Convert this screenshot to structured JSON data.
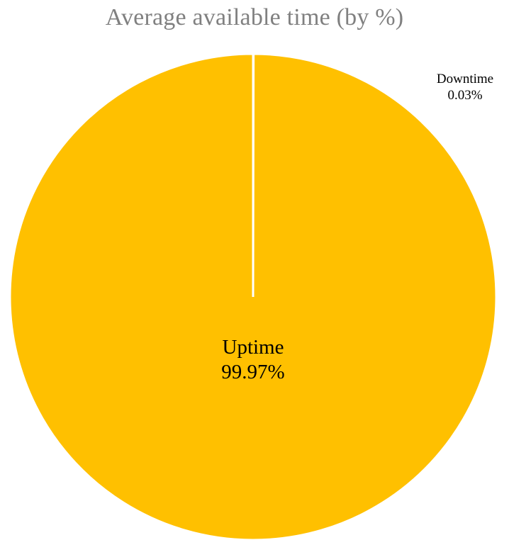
{
  "chart_data": {
    "type": "pie",
    "title": "Average available time (by %)",
    "slices": [
      {
        "name": "Downtime",
        "value": 0.03,
        "label_value": "0.03%",
        "color": "#ffc000"
      },
      {
        "name": "Uptime",
        "value": 99.97,
        "label_value": "99.97%",
        "color": "#ffc000"
      }
    ],
    "legend": "none",
    "start_angle": "12 o'clock, clockwise"
  },
  "colors": {
    "slice_fill": "#ffc000",
    "border": "#ffffff",
    "title": "#808080"
  }
}
